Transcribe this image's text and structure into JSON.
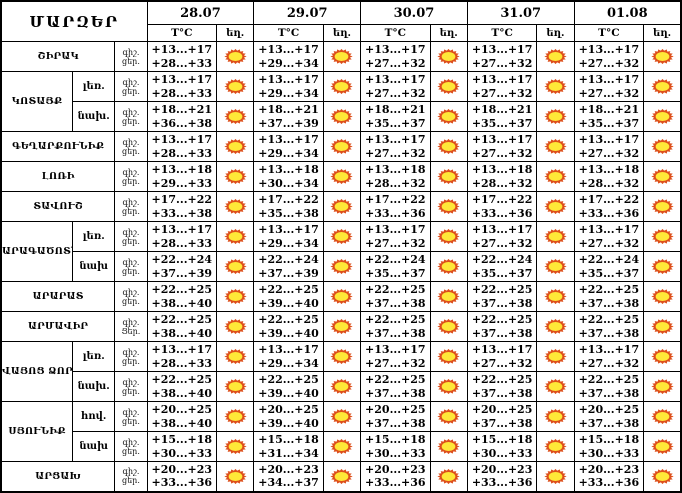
{
  "header": {
    "title": "ՄԱՐԶԵՐ",
    "dates": [
      "28.07",
      "29.07",
      "30.07",
      "31.07",
      "01.08"
    ],
    "temp_label": "T°C",
    "weather_label": "եղ."
  },
  "colors": {
    "sun_core": "#FFE838",
    "sun_rays": "#DD4E1A",
    "border": "#000000",
    "background": "#FFFFFF"
  },
  "regions": [
    {
      "name": "ՇԻՐԱԿ",
      "zones": [
        {
          "label": null,
          "night_label": "գիշ.",
          "day_label": "ցեր.",
          "temps": [
            {
              "night": "+13...+17",
              "day": "+28...+33",
              "weather": "sun"
            },
            {
              "night": "+13...+17",
              "day": "+29...+34",
              "weather": "sun"
            },
            {
              "night": "+13...+17",
              "day": "+27...+32",
              "weather": "sun"
            },
            {
              "night": "+13...+17",
              "day": "+27...+32",
              "weather": "sun"
            },
            {
              "night": "+13...+17",
              "day": "+27...+32",
              "weather": "sun"
            }
          ]
        }
      ]
    },
    {
      "name": "ԿՈՏԱՅՔ",
      "zones": [
        {
          "label": "լեռ.",
          "night_label": "գիշ.",
          "day_label": "ցեր.",
          "temps": [
            {
              "night": "+13...+17",
              "day": "+28...+33",
              "weather": "sun"
            },
            {
              "night": "+13...+17",
              "day": "+29...+34",
              "weather": "sun"
            },
            {
              "night": "+13...+17",
              "day": "+27...+32",
              "weather": "sun"
            },
            {
              "night": "+13...+17",
              "day": "+27...+32",
              "weather": "sun"
            },
            {
              "night": "+13...+17",
              "day": "+27...+32",
              "weather": "sun"
            }
          ]
        },
        {
          "label": "նախ.",
          "night_label": "գիշ.",
          "day_label": "ցեր.",
          "temps": [
            {
              "night": "+18...+21",
              "day": "+36...+38",
              "weather": "sun"
            },
            {
              "night": "+18...+21",
              "day": "+37...+39",
              "weather": "sun"
            },
            {
              "night": "+18...+21",
              "day": "+35...+37",
              "weather": "sun"
            },
            {
              "night": "+18...+21",
              "day": "+35...+37",
              "weather": "sun"
            },
            {
              "night": "+18...+21",
              "day": "+35...+37",
              "weather": "sun"
            }
          ]
        }
      ]
    },
    {
      "name": "ԳԵՂԱՐՔՈՒՆԻՔ",
      "zones": [
        {
          "label": null,
          "night_label": "գիշ.",
          "day_label": "ցեր.",
          "temps": [
            {
              "night": "+13...+17",
              "day": "+28...+33",
              "weather": "sun"
            },
            {
              "night": "+13...+17",
              "day": "+29...+34",
              "weather": "sun"
            },
            {
              "night": "+13...+17",
              "day": "+27...+32",
              "weather": "sun"
            },
            {
              "night": "+13...+17",
              "day": "+27...+32",
              "weather": "sun"
            },
            {
              "night": "+13...+17",
              "day": "+27...+32",
              "weather": "sun"
            }
          ]
        }
      ]
    },
    {
      "name": "ԼՈՌԻ",
      "zones": [
        {
          "label": null,
          "night_label": "գիշ.",
          "day_label": "ցեր.",
          "temps": [
            {
              "night": "+13...+18",
              "day": "+29...+33",
              "weather": "sun"
            },
            {
              "night": "+13...+18",
              "day": "+30...+34",
              "weather": "sun"
            },
            {
              "night": "+13...+18",
              "day": "+28...+32",
              "weather": "sun"
            },
            {
              "night": "+13...+18",
              "day": "+28...+32",
              "weather": "sun"
            },
            {
              "night": "+13...+18",
              "day": "+28...+32",
              "weather": "sun"
            }
          ]
        }
      ]
    },
    {
      "name": "ՏԱՎՈՒՇ",
      "zones": [
        {
          "label": null,
          "night_label": "գիշ.",
          "day_label": "ցեր.",
          "temps": [
            {
              "night": "+17...+22",
              "day": "+33...+38",
              "weather": "sun"
            },
            {
              "night": "+17...+22",
              "day": "+35...+38",
              "weather": "sun"
            },
            {
              "night": "+17...+22",
              "day": "+33...+36",
              "weather": "sun"
            },
            {
              "night": "+17...+22",
              "day": "+33...+36",
              "weather": "sun"
            },
            {
              "night": "+17...+22",
              "day": "+33...+36",
              "weather": "sun"
            }
          ]
        }
      ]
    },
    {
      "name": "ԱՐԱԳԱԾՈՏՆ",
      "zones": [
        {
          "label": "լեռ.",
          "night_label": "գիշ.",
          "day_label": "ցեր.",
          "temps": [
            {
              "night": "+13...+17",
              "day": "+28...+33",
              "weather": "sun"
            },
            {
              "night": "+13...+17",
              "day": "+29...+34",
              "weather": "sun"
            },
            {
              "night": "+13...+17",
              "day": "+27...+32",
              "weather": "sun"
            },
            {
              "night": "+13...+17",
              "day": "+27...+32",
              "weather": "sun"
            },
            {
              "night": "+13...+17",
              "day": "+27...+32",
              "weather": "sun"
            }
          ]
        },
        {
          "label": "նախ",
          "night_label": "գիշ.",
          "day_label": "ցեր.",
          "temps": [
            {
              "night": "+22...+24",
              "day": "+37...+39",
              "weather": "sun"
            },
            {
              "night": "+22...+24",
              "day": "+37...+39",
              "weather": "sun"
            },
            {
              "night": "+22...+24",
              "day": "+35...+37",
              "weather": "sun"
            },
            {
              "night": "+22...+24",
              "day": "+35...+37",
              "weather": "sun"
            },
            {
              "night": "+22...+24",
              "day": "+35...+37",
              "weather": "sun"
            }
          ]
        }
      ]
    },
    {
      "name": "ԱՐԱՐԱՏ",
      "zones": [
        {
          "label": null,
          "night_label": "գիշ.",
          "day_label": "ցեր.",
          "temps": [
            {
              "night": "+22...+25",
              "day": "+38...+40",
              "weather": "sun"
            },
            {
              "night": "+22...+25",
              "day": "+39...+40",
              "weather": "sun"
            },
            {
              "night": "+22...+25",
              "day": "+37...+38",
              "weather": "sun"
            },
            {
              "night": "+22...+25",
              "day": "+37...+38",
              "weather": "sun"
            },
            {
              "night": "+22...+25",
              "day": "+37...+38",
              "weather": "sun"
            }
          ]
        }
      ]
    },
    {
      "name": "ԱՐՄԱՎԻՐ",
      "zones": [
        {
          "label": null,
          "night_label": "գիշ.",
          "day_label": "Ցեր.",
          "temps": [
            {
              "night": "+22...+25",
              "day": "+38...+40",
              "weather": "sun"
            },
            {
              "night": "+22...+25",
              "day": "+39...+40",
              "weather": "sun"
            },
            {
              "night": "+22...+25",
              "day": "+37...+38",
              "weather": "sun"
            },
            {
              "night": "+22...+25",
              "day": "+37...+38",
              "weather": "sun"
            },
            {
              "night": "+22...+25",
              "day": "+37...+38",
              "weather": "sun"
            }
          ]
        }
      ]
    },
    {
      "name": "ՎԱՅՈՑ ՁՈՐ",
      "zones": [
        {
          "label": "լեռ.",
          "night_label": "գիշ.",
          "day_label": "ցեր.",
          "temps": [
            {
              "night": "+13...+17",
              "day": "+28...+33",
              "weather": "sun"
            },
            {
              "night": "+13...+17",
              "day": "+29...+34",
              "weather": "sun"
            },
            {
              "night": "+13...+17",
              "day": "+27...+32",
              "weather": "sun"
            },
            {
              "night": "+13...+17",
              "day": "+27...+32",
              "weather": "sun"
            },
            {
              "night": "+13...+17",
              "day": "+27...+32",
              "weather": "sun"
            }
          ]
        },
        {
          "label": "նախ.",
          "night_label": "գիշ.",
          "day_label": "ցեր.",
          "temps": [
            {
              "night": "+22...+25",
              "day": "+38...+40",
              "weather": "sun"
            },
            {
              "night": "+22...+25",
              "day": "+39...+40",
              "weather": "sun"
            },
            {
              "night": "+22...+25",
              "day": "+37...+38",
              "weather": "sun"
            },
            {
              "night": "+22...+25",
              "day": "+37...+38",
              "weather": "sun"
            },
            {
              "night": "+22...+25",
              "day": "+37...+38",
              "weather": "sun"
            }
          ]
        }
      ]
    },
    {
      "name": "ՍՅՈՒՆԻՔ",
      "zones": [
        {
          "label": "հով.",
          "night_label": "գիշ.",
          "day_label": "ցեր.",
          "temps": [
            {
              "night": "+20...+25",
              "day": "+38...+40",
              "weather": "sun"
            },
            {
              "night": "+20...+25",
              "day": "+39...+40",
              "weather": "sun"
            },
            {
              "night": "+20...+25",
              "day": "+37...+38",
              "weather": "sun"
            },
            {
              "night": "+20...+25",
              "day": "+37...+38",
              "weather": "sun"
            },
            {
              "night": "+20...+25",
              "day": "+37...+38",
              "weather": "sun"
            }
          ]
        },
        {
          "label": "նախ",
          "night_label": "գիշ.",
          "day_label": "ցեր.",
          "temps": [
            {
              "night": "+15...+18",
              "day": "+30...+33",
              "weather": "sun"
            },
            {
              "night": "+15...+18",
              "day": "+31...+34",
              "weather": "sun"
            },
            {
              "night": "+15...+18",
              "day": "+30...+33",
              "weather": "sun"
            },
            {
              "night": "+15...+18",
              "day": "+30...+33",
              "weather": "sun"
            },
            {
              "night": "+15...+18",
              "day": "+30...+33",
              "weather": "sun"
            }
          ]
        }
      ]
    },
    {
      "name": "ԱՐՑԱԽ",
      "zones": [
        {
          "label": null,
          "night_label": "գիշ.",
          "day_label": "ցեր.",
          "temps": [
            {
              "night": "+20...+23",
              "day": "+33...+36",
              "weather": "sun"
            },
            {
              "night": "+20...+23",
              "day": "+34...+37",
              "weather": "sun"
            },
            {
              "night": "+20...+23",
              "day": "+33...+36",
              "weather": "sun"
            },
            {
              "night": "+20...+23",
              "day": "+33...+36",
              "weather": "sun"
            },
            {
              "night": "+20...+23",
              "day": "+33...+36",
              "weather": "sun"
            }
          ]
        }
      ]
    }
  ]
}
